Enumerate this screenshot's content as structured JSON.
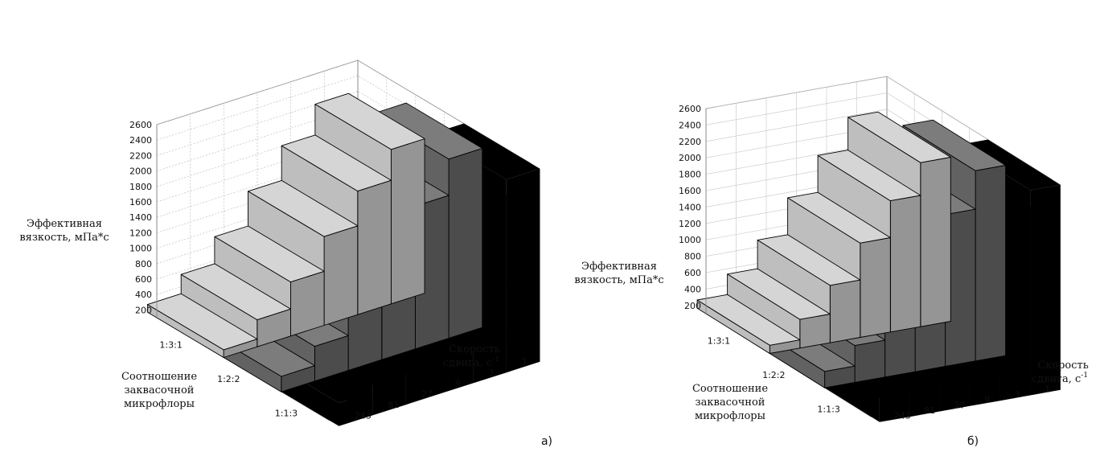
{
  "chart_data": [
    {
      "type": "3d-bar",
      "caption": "а)",
      "zlabel_lines": [
        "Эффективная",
        "вязкость, мПа*с"
      ],
      "xlabel_lines": [
        "Скорость",
        "сдвига, с",
        "-1"
      ],
      "ylabel_lines": [
        "Соотношение",
        "заквасочной",
        "микрофлоры"
      ],
      "z_ticks": [
        "200",
        "400",
        "600",
        "800",
        "1000",
        "1200",
        "1400",
        "1600",
        "1800",
        "2000",
        "2200",
        "2400",
        "2600"
      ],
      "zlim": [
        100,
        2600
      ],
      "x_categories": [
        "1",
        "3",
        "9",
        "27",
        "81",
        "243"
      ],
      "y_categories": [
        "1:3:1",
        "1:2:2",
        "1:1:3"
      ],
      "grid": true,
      "series": [
        {
          "name": "1:3:1",
          "color": "#cfcfcf",
          "values": [
            2100,
            1700,
            1250,
            800,
            450,
            200
          ]
        },
        {
          "name": "1:2:2",
          "color": "#6a6a6a",
          "values": [
            2420,
            1950,
            1450,
            950,
            550,
            300
          ]
        },
        {
          "name": "1:1:3",
          "color": "#000000",
          "values": [
            2600,
            2400,
            1800,
            1200,
            700,
            400
          ]
        }
      ]
    },
    {
      "type": "3d-bar",
      "caption": "б)",
      "zlabel_lines": [
        "Эффективная",
        "вязкость, мПа*с"
      ],
      "xlabel_lines": [
        "Скорость",
        "сдвига, с",
        "-1"
      ],
      "ylabel_lines": [
        "Соотношение",
        "заквасочной",
        "микрофлоры"
      ],
      "z_ticks": [
        "200",
        "400",
        "600",
        "800",
        "1000",
        "1200",
        "1400",
        "1600",
        "1800",
        "2000",
        "2200",
        "2400",
        "2600"
      ],
      "zlim": [
        100,
        2600
      ],
      "x_categories": [
        "1",
        "3",
        "9",
        "27",
        "81",
        "243"
      ],
      "y_categories": [
        "1:3:1",
        "1:2:2",
        "1:1:3"
      ],
      "grid": true,
      "series": [
        {
          "name": "1:3:1",
          "color": "#cfcfcf",
          "values": [
            2100,
            1700,
            1250,
            800,
            450,
            200
          ]
        },
        {
          "name": "1:2:2",
          "color": "#6a6a6a",
          "values": [
            2420,
            1950,
            1450,
            950,
            550,
            300
          ]
        },
        {
          "name": "1:1:3",
          "color": "#000000",
          "values": [
            2600,
            2400,
            1800,
            1200,
            700,
            400
          ]
        }
      ]
    }
  ]
}
